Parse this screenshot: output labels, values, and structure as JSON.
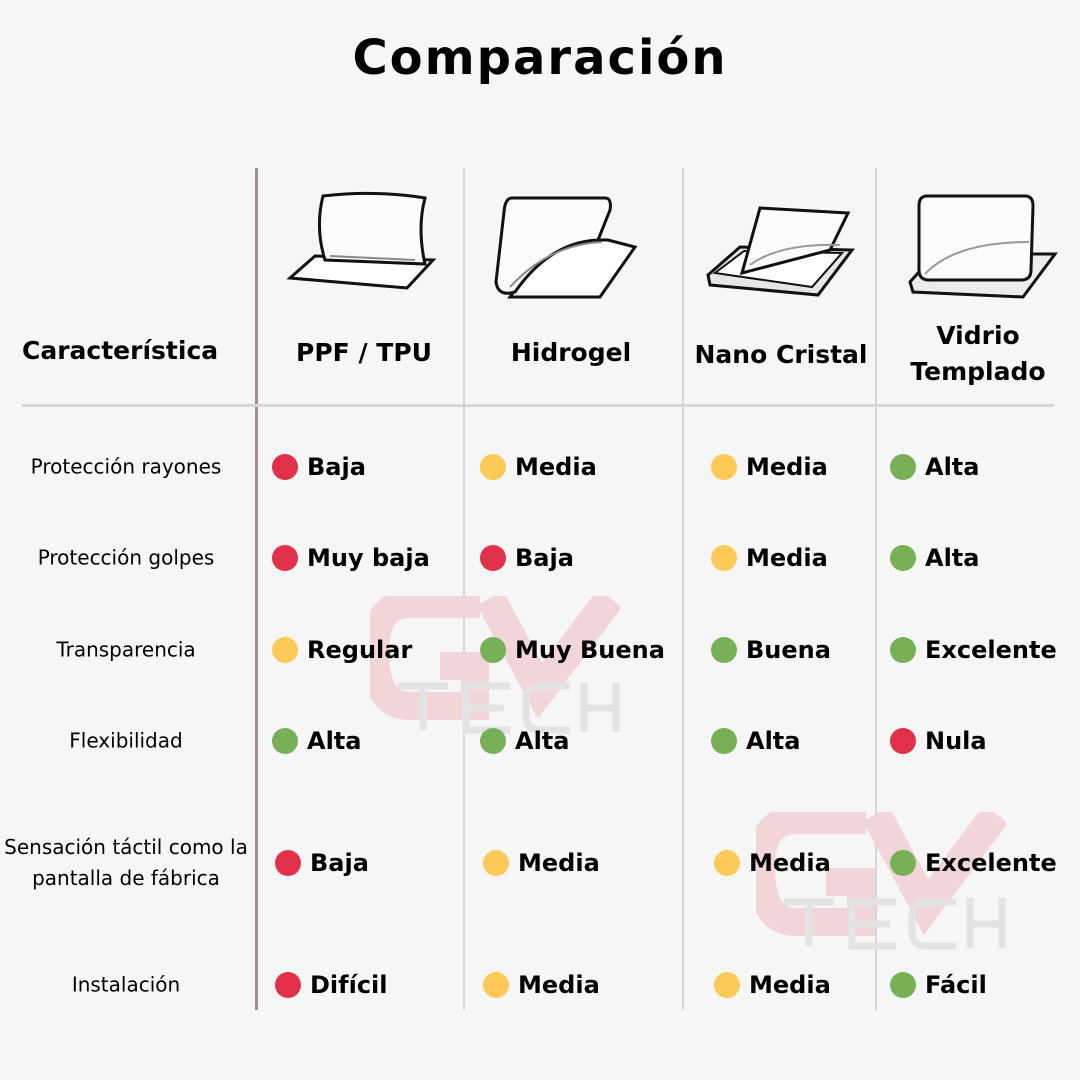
{
  "title": "Comparación",
  "feature_header": "Característica",
  "columns": [
    {
      "label": "PPF / TPU",
      "image": "flexible-film-icon"
    },
    {
      "label": "Hidrogel",
      "image": "hydrogel-film-icon"
    },
    {
      "label": "Nano Cristal",
      "image": "nano-glass-icon"
    },
    {
      "label": "Vidrio Templado",
      "image": "tempered-glass-icon"
    }
  ],
  "colors": {
    "red": "#e0304a",
    "yellow": "#fdca57",
    "green": "#78b058"
  },
  "rows": [
    {
      "feature": "Protección rayones",
      "values": [
        {
          "text": "Baja",
          "level": "red"
        },
        {
          "text": "Media",
          "level": "yellow"
        },
        {
          "text": "Media",
          "level": "yellow"
        },
        {
          "text": "Alta",
          "level": "green"
        }
      ]
    },
    {
      "feature": "Protección golpes",
      "values": [
        {
          "text": "Muy baja",
          "level": "red"
        },
        {
          "text": "Baja",
          "level": "red"
        },
        {
          "text": "Media",
          "level": "yellow"
        },
        {
          "text": "Alta",
          "level": "green"
        }
      ]
    },
    {
      "feature": "Transparencia",
      "values": [
        {
          "text": "Regular",
          "level": "yellow"
        },
        {
          "text": "Muy Buena",
          "level": "green"
        },
        {
          "text": "Buena",
          "level": "green"
        },
        {
          "text": "Excelente",
          "level": "green"
        }
      ]
    },
    {
      "feature": "Flexibilidad",
      "values": [
        {
          "text": "Alta",
          "level": "green"
        },
        {
          "text": "Alta",
          "level": "green"
        },
        {
          "text": "Alta",
          "level": "green"
        },
        {
          "text": "Nula",
          "level": "red"
        }
      ]
    },
    {
      "feature": "Sensación táctil como la pantalla de fábrica",
      "values": [
        {
          "text": "Baja",
          "level": "red"
        },
        {
          "text": "Media",
          "level": "yellow"
        },
        {
          "text": "Media",
          "level": "yellow"
        },
        {
          "text": "Excelente",
          "level": "green"
        }
      ]
    },
    {
      "feature": "Instalación",
      "values": [
        {
          "text": "Difícil",
          "level": "red"
        },
        {
          "text": "Media",
          "level": "yellow"
        },
        {
          "text": "Media",
          "level": "yellow"
        },
        {
          "text": "Fácil",
          "level": "green"
        }
      ]
    }
  ],
  "watermark": {
    "line1": "GV",
    "line2": "TECH"
  }
}
